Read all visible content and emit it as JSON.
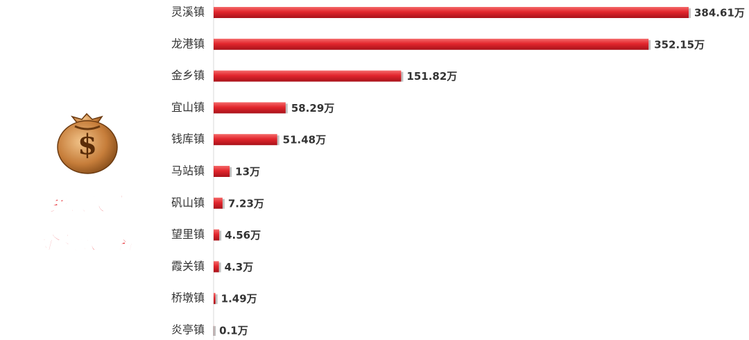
{
  "chart_data": {
    "type": "hbar",
    "title_lines": [
      "乡镇被骗",
      "金额数排名"
    ],
    "categories": [
      "灵溪镇",
      "龙港镇",
      "金乡镇",
      "宜山镇",
      "钱库镇",
      "马站镇",
      "矾山镇",
      "望里镇",
      "霞关镇",
      "桥墩镇",
      "炎亭镇"
    ],
    "values": [
      384.61,
      352.15,
      151.82,
      58.29,
      51.48,
      13,
      7.23,
      4.56,
      4.3,
      1.49,
      0.1
    ],
    "value_labels": [
      "384.61万",
      "352.15万",
      "151.82万",
      "58.29万",
      "51.48万",
      "13万",
      "7.23万",
      "4.56万",
      "4.3万",
      "1.49万",
      "0.1万"
    ],
    "color": "#d9232a"
  }
}
